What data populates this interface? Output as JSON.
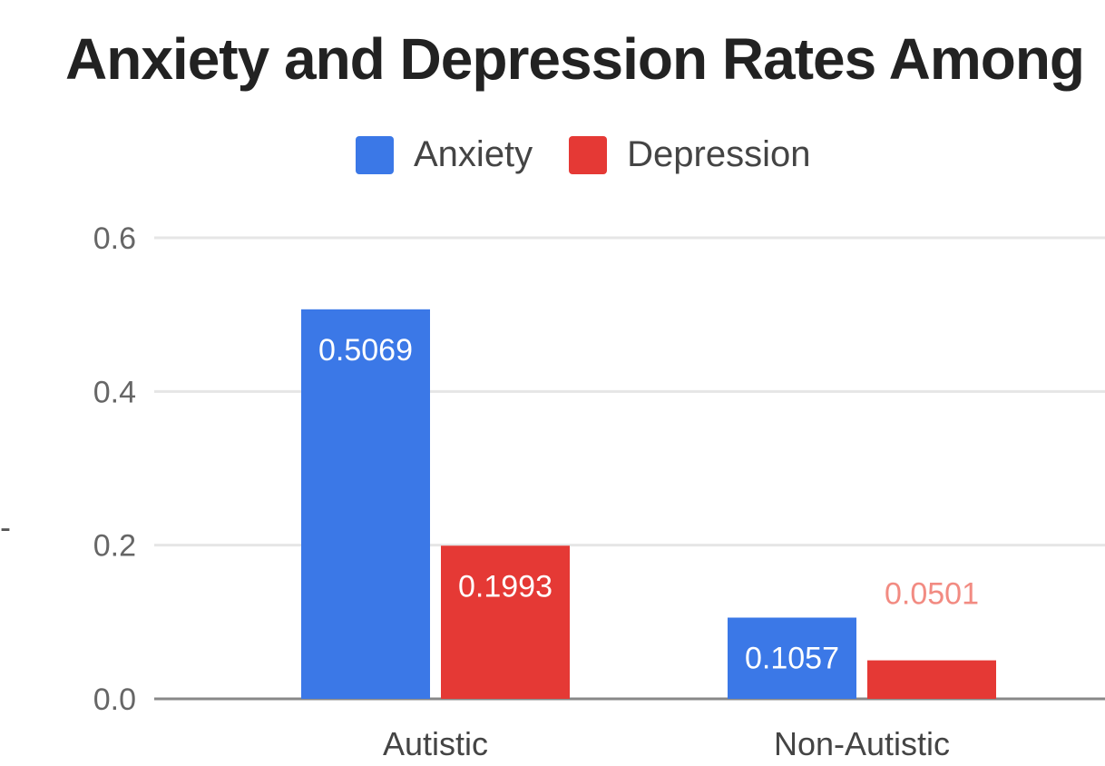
{
  "chart_data": {
    "type": "bar",
    "title": "Anxiety and Depression Rates Among",
    "ylabel": "",
    "xlabel": "",
    "categories": [
      "Autistic",
      "Non-Autistic"
    ],
    "series": [
      {
        "name": "Anxiety",
        "values": [
          0.5069,
          0.1057
        ],
        "labels": [
          "0.5069",
          "0.1057"
        ],
        "color": "#3b78e7"
      },
      {
        "name": "Depression",
        "values": [
          0.1993,
          0.0501
        ],
        "labels": [
          "0.1993",
          "0.0501"
        ],
        "color": "#e53935"
      }
    ],
    "ylim": [
      0,
      0.6
    ],
    "yticks": [
      "0.0",
      "0.2",
      "0.4",
      "0.6"
    ],
    "grid": true,
    "legend_position": "top",
    "y_axis_stub": "-"
  }
}
